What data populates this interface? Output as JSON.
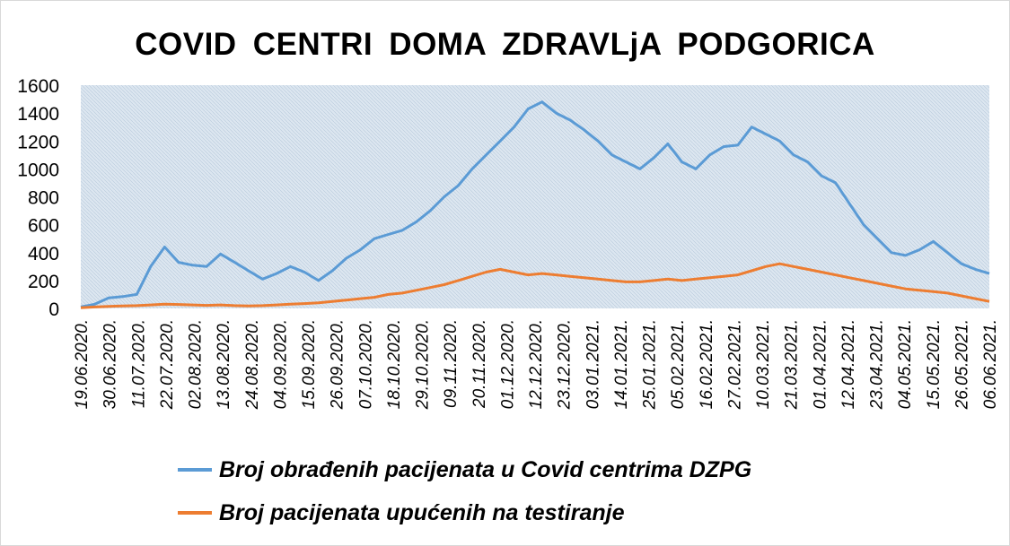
{
  "chart_data": {
    "type": "line",
    "title": "COVID  CENTRI  DOMA  ZDRAVLjA  PODGORICA",
    "xlabel": "",
    "ylabel": "",
    "ylim": [
      0,
      1600
    ],
    "yticks": [
      0,
      200,
      400,
      600,
      800,
      1000,
      1200,
      1400,
      1600
    ],
    "x_tick_labels": [
      "19.06.2020.",
      "30.06.2020.",
      "11.07.2020.",
      "22.07.2020.",
      "02.08.2020.",
      "13.08.2020.",
      "24.08.2020.",
      "04.09.2020.",
      "15.09.2020.",
      "26.09.2020.",
      "07.10.2020.",
      "18.10.2020.",
      "29.10.2020.",
      "09.11.2020.",
      "20.11.2020.",
      "01.12.2020.",
      "12.12.2020.",
      "23.12.2020.",
      "03.01.2021.",
      "14.01.2021.",
      "25.01.2021.",
      "05.02.2021.",
      "16.02.2021.",
      "27.02.2021.",
      "10.03.2021.",
      "21.03.2021.",
      "01.04.2021.",
      "12.04.2021.",
      "23.04.2021.",
      "04.05.2021.",
      "15.05.2021.",
      "26.05.2021.",
      "06.06.2021."
    ],
    "grid": "pattern",
    "legend_position": "bottom",
    "series": [
      {
        "name": "Broj obrađenih pacijenata u Covid centrima DZPG",
        "color": "#5b9bd5",
        "values": [
          10,
          30,
          75,
          85,
          100,
          300,
          440,
          330,
          310,
          300,
          390,
          330,
          270,
          210,
          250,
          300,
          260,
          200,
          270,
          360,
          420,
          500,
          530,
          560,
          620,
          700,
          800,
          880,
          1000,
          1100,
          1200,
          1300,
          1430,
          1480,
          1400,
          1350,
          1280,
          1200,
          1100,
          1050,
          1000,
          1080,
          1180,
          1050,
          1000,
          1100,
          1160,
          1170,
          1300,
          1250,
          1200,
          1100,
          1050,
          950,
          900,
          750,
          600,
          500,
          400,
          380,
          420,
          480,
          400,
          320,
          280,
          250
        ]
      },
      {
        "name": "Broj pacijenata upućenih na testiranje",
        "color": "#ed7d31",
        "values": [
          5,
          10,
          15,
          18,
          20,
          25,
          30,
          28,
          25,
          22,
          25,
          20,
          18,
          20,
          25,
          30,
          35,
          40,
          50,
          60,
          70,
          80,
          100,
          110,
          130,
          150,
          170,
          200,
          230,
          260,
          280,
          260,
          240,
          250,
          240,
          230,
          220,
          210,
          200,
          190,
          190,
          200,
          210,
          200,
          210,
          220,
          230,
          240,
          270,
          300,
          320,
          300,
          280,
          260,
          240,
          220,
          200,
          180,
          160,
          140,
          130,
          120,
          110,
          90,
          70,
          50
        ]
      }
    ]
  }
}
